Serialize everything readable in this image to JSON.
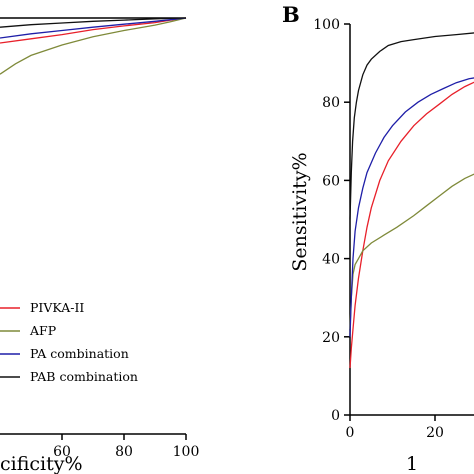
{
  "chart_data": [
    {
      "type": "line",
      "panel_label": "",
      "xlabel": "cificity%",
      "ylabel": "",
      "xlim": [
        40,
        100
      ],
      "ylim": [
        0,
        100
      ],
      "xticks": [
        "60",
        "80",
        "100"
      ],
      "yticks": [],
      "grid": false,
      "legend": "lower-right",
      "series": [
        {
          "name": "PIVKA-II",
          "color": "#e8202a",
          "x": [
            40,
            50,
            60,
            70,
            80,
            90,
            95,
            100
          ],
          "y": [
            94,
            95,
            96,
            97.2,
            98.1,
            98.9,
            99.5,
            100
          ]
        },
        {
          "name": "AFP",
          "color": "#7f8a3a",
          "x": [
            40,
            45,
            50,
            60,
            70,
            80,
            90,
            95,
            100
          ],
          "y": [
            86.5,
            89,
            91,
            93.5,
            95.5,
            97,
            98.3,
            99.1,
            100
          ]
        },
        {
          "name": "PA combination",
          "color": "#1f1fa8",
          "x": [
            40,
            50,
            60,
            70,
            80,
            90,
            95,
            100
          ],
          "y": [
            95.2,
            96.2,
            97,
            97.8,
            98.5,
            99.2,
            99.6,
            100
          ]
        },
        {
          "name": "PAB combination",
          "color": "#111111",
          "x": [
            40,
            50,
            60,
            70,
            80,
            90,
            95,
            100
          ],
          "y": [
            97.8,
            98.4,
            98.8,
            99.2,
            99.5,
            99.8,
            99.9,
            100
          ]
        }
      ]
    },
    {
      "type": "line",
      "panel_label": "B",
      "xlabel": "1",
      "ylabel": "Sensitivity%",
      "xlim": [
        0,
        40
      ],
      "ylim": [
        0,
        100
      ],
      "xticks": [
        "0",
        "20"
      ],
      "yticks": [
        "0",
        "20",
        "40",
        "60",
        "80",
        "100"
      ],
      "grid": false,
      "legend": "none",
      "series": [
        {
          "name": "PIVKA-II",
          "color": "#e8202a",
          "x": [
            0,
            0.3,
            0.7,
            1.2,
            2,
            3,
            4,
            5,
            7,
            9,
            12,
            15,
            18,
            21,
            24,
            27,
            30,
            35
          ],
          "y": [
            12,
            17,
            22,
            28,
            35,
            42,
            48,
            53,
            60,
            65,
            70,
            74,
            77,
            79.5,
            82,
            84,
            85.5,
            86.5
          ]
        },
        {
          "name": "AFP",
          "color": "#7f8a3a",
          "x": [
            0,
            0.3,
            0.7,
            1.2,
            2,
            3,
            5,
            8,
            11,
            15,
            18,
            21,
            24,
            27,
            30,
            35
          ],
          "y": [
            22,
            30,
            36,
            38.5,
            40,
            42,
            44,
            46,
            48,
            51,
            53.5,
            56,
            58.5,
            60.5,
            62,
            63.5
          ]
        },
        {
          "name": "PA combination",
          "color": "#1f1fa8",
          "x": [
            0,
            0.3,
            0.7,
            1.2,
            2,
            3,
            4,
            6,
            8,
            10,
            13,
            16,
            19,
            22,
            25,
            28,
            31,
            35
          ],
          "y": [
            20,
            30,
            40,
            47,
            53,
            58,
            62,
            67,
            71,
            74,
            77.5,
            80,
            82,
            83.5,
            85,
            86,
            86.5,
            87
          ]
        },
        {
          "name": "PAB combination",
          "color": "#111111",
          "x": [
            0,
            0.3,
            0.6,
            1,
            1.5,
            2,
            3,
            4,
            5,
            7,
            9,
            12,
            15,
            20,
            25,
            30,
            35
          ],
          "y": [
            50,
            62,
            70,
            76,
            80,
            83,
            87,
            89.5,
            91,
            93,
            94.5,
            95.5,
            96,
            96.8,
            97.3,
            97.8,
            98.2
          ]
        }
      ]
    }
  ]
}
